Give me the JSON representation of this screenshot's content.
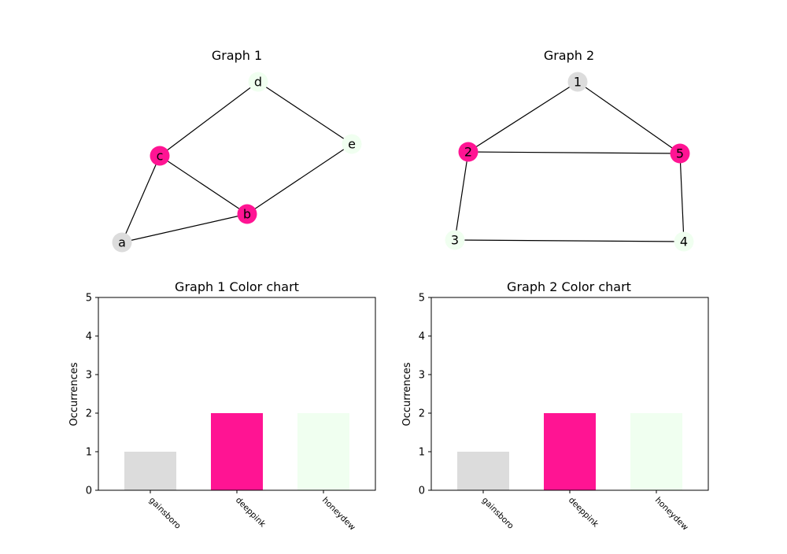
{
  "graphs": [
    {
      "title": "Graph 1",
      "nodes": [
        {
          "id": "a",
          "color": "#dcdcdc"
        },
        {
          "id": "b",
          "color": "#ff1493"
        },
        {
          "id": "c",
          "color": "#ff1493"
        },
        {
          "id": "d",
          "color": "#f0fff0"
        },
        {
          "id": "e",
          "color": "#f0fff0"
        }
      ],
      "edges": [
        [
          "a",
          "c"
        ],
        [
          "a",
          "b"
        ],
        [
          "c",
          "d"
        ],
        [
          "c",
          "b"
        ],
        [
          "b",
          "e"
        ],
        [
          "d",
          "e"
        ]
      ]
    },
    {
      "title": "Graph 2",
      "nodes": [
        {
          "id": "1",
          "color": "#dcdcdc"
        },
        {
          "id": "2",
          "color": "#ff1493"
        },
        {
          "id": "5",
          "color": "#ff1493"
        },
        {
          "id": "3",
          "color": "#f0fff0"
        },
        {
          "id": "4",
          "color": "#f0fff0"
        }
      ],
      "edges": [
        [
          "1",
          "2"
        ],
        [
          "1",
          "5"
        ],
        [
          "2",
          "5"
        ],
        [
          "2",
          "3"
        ],
        [
          "5",
          "4"
        ],
        [
          "3",
          "4"
        ]
      ]
    }
  ],
  "chart_data": [
    {
      "type": "bar",
      "title": "Graph 1 Color chart",
      "ylabel": "Occurrences",
      "xlabel": "",
      "categories": [
        "gainsboro",
        "deeppink",
        "honeydew"
      ],
      "values": [
        1,
        2,
        2
      ],
      "colors": [
        "#dcdcdc",
        "#ff1493",
        "#f0fff0"
      ],
      "ylim": [
        0,
        5
      ],
      "yticks": [
        0,
        1,
        2,
        3,
        4,
        5
      ],
      "grid": false
    },
    {
      "type": "bar",
      "title": "Graph 2 Color chart",
      "ylabel": "Occurrences",
      "xlabel": "",
      "categories": [
        "gainsboro",
        "deeppink",
        "honeydew"
      ],
      "values": [
        1,
        2,
        2
      ],
      "colors": [
        "#dcdcdc",
        "#ff1493",
        "#f0fff0"
      ],
      "ylim": [
        0,
        5
      ],
      "yticks": [
        0,
        1,
        2,
        3,
        4,
        5
      ],
      "grid": false
    }
  ]
}
